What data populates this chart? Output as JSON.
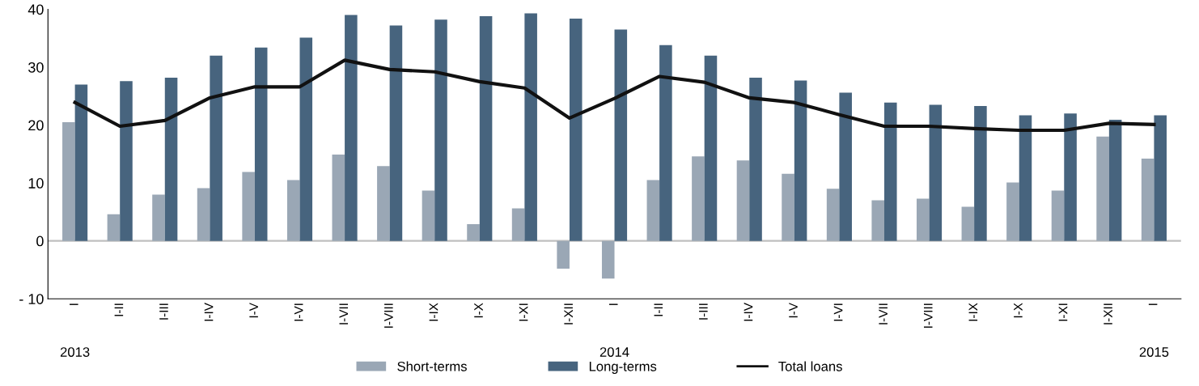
{
  "chart_data": {
    "type": "bar",
    "categories": [
      "I",
      "I-II",
      "I-III",
      "I-IV",
      "I-V",
      "I-VI",
      "I-VII",
      "I-VIII",
      "I-IX",
      "I-X",
      "I-XI",
      "I-XII",
      "I",
      "I-II",
      "I-III",
      "I-IV",
      "I-V",
      "I-VI",
      "I-VII",
      "I-VIII",
      "I-IX",
      "I-X",
      "I-XI",
      "I-XII",
      "I"
    ],
    "series": [
      {
        "name": "Short-terms",
        "color": "#9aa7b5",
        "values": [
          20.5,
          4.6,
          8.0,
          9.1,
          11.9,
          10.5,
          14.9,
          12.9,
          8.7,
          2.9,
          5.6,
          -4.8,
          -6.5,
          10.5,
          14.6,
          13.9,
          11.6,
          9.0,
          7.0,
          7.3,
          5.9,
          10.1,
          8.7,
          18.0,
          14.2
        ]
      },
      {
        "name": "Long-terms",
        "color": "#47647e",
        "values": [
          27.0,
          27.6,
          28.2,
          32.0,
          33.4,
          35.1,
          39.0,
          37.2,
          38.2,
          38.8,
          39.3,
          38.4,
          36.5,
          33.8,
          32.0,
          28.2,
          27.7,
          25.6,
          23.9,
          23.5,
          23.3,
          21.7,
          22.0,
          20.9,
          21.7
        ]
      },
      {
        "name": "Total loans",
        "type": "line",
        "color": "#111111",
        "values": [
          23.9,
          19.8,
          20.8,
          24.7,
          26.6,
          26.6,
          31.2,
          29.6,
          29.2,
          27.5,
          26.4,
          21.2,
          24.6,
          28.4,
          27.4,
          24.7,
          23.9,
          21.8,
          19.8,
          19.8,
          19.4,
          19.1,
          19.1,
          20.3,
          20.1
        ]
      }
    ],
    "ylim": [
      -10,
      40
    ],
    "yticks": [
      {
        "value": -10,
        "label": "- 10"
      },
      0,
      10,
      20,
      30,
      40
    ],
    "ref_lines": [
      {
        "axis": "y",
        "value": 0,
        "color": "#bfbfbf"
      }
    ],
    "annotations": [
      "2013",
      "2014",
      "2015"
    ],
    "legend": "bottom",
    "grid": false
  }
}
